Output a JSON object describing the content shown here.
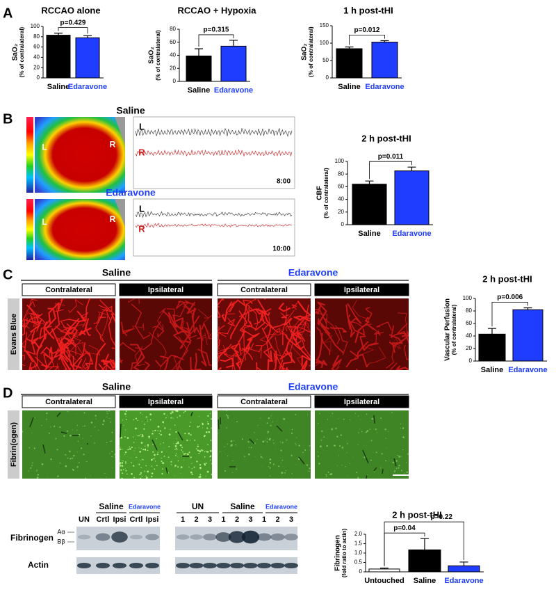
{
  "chart_data": [
    {
      "type": "bar",
      "title": "RCCAO alone",
      "ylabel": [
        "SaO₂",
        "(% of contralateral)"
      ],
      "categories": [
        "Saline",
        "Edaravone"
      ],
      "values": [
        83,
        78
      ],
      "errors": [
        4,
        4
      ],
      "colors": [
        "#000000",
        "#1f3dff"
      ],
      "ylim": [
        0,
        100
      ],
      "yticks": [
        0,
        20,
        40,
        60,
        80,
        100
      ],
      "comparisons": [
        "p=0.429"
      ]
    },
    {
      "type": "bar",
      "title": "RCCAO + Hypoxia",
      "ylabel": [
        "SaO₂",
        "(% of contralateral)"
      ],
      "categories": [
        "Saline",
        "Edaravone"
      ],
      "values": [
        39,
        54
      ],
      "errors": [
        11,
        9
      ],
      "colors": [
        "#000000",
        "#1f3dff"
      ],
      "ylim": [
        0,
        80
      ],
      "yticks": [
        0,
        20,
        40,
        60,
        80
      ],
      "comparisons": [
        "p=0.315"
      ]
    },
    {
      "type": "bar",
      "title": "1 h post-tHI",
      "ylabel": [
        "SaO₂",
        "(% of contralateral)"
      ],
      "categories": [
        "Saline",
        "Edaravone"
      ],
      "values": [
        84,
        103
      ],
      "errors": [
        5,
        4
      ],
      "colors": [
        "#000000",
        "#1f3dff"
      ],
      "ylim": [
        0,
        150
      ],
      "yticks": [
        0,
        50,
        100,
        150
      ],
      "comparisons": [
        "p=0.012"
      ]
    },
    {
      "type": "bar",
      "title": "2 h post-tHI",
      "ylabel": [
        "CBF",
        "(% of contralateral)"
      ],
      "categories": [
        "Saline",
        "Edaravone"
      ],
      "values": [
        64,
        85
      ],
      "errors": [
        5,
        6
      ],
      "colors": [
        "#000000",
        "#1f3dff"
      ],
      "ylim": [
        0,
        100
      ],
      "yticks": [
        0,
        20,
        40,
        60,
        80,
        100
      ],
      "comparisons": [
        "p=0.011"
      ]
    },
    {
      "type": "bar",
      "title": "2 h post-tHI",
      "ylabel": [
        "Vascular Perfusion",
        "(% of contralateral)"
      ],
      "categories": [
        "Saline",
        "Edaravone"
      ],
      "values": [
        43,
        82
      ],
      "errors": [
        9,
        3
      ],
      "colors": [
        "#000000",
        "#1f3dff"
      ],
      "ylim": [
        0,
        100
      ],
      "yticks": [
        0,
        20,
        40,
        60,
        80,
        100
      ],
      "comparisons": [
        "p=0.006"
      ]
    },
    {
      "type": "bar",
      "title": "2 h post-tHI",
      "ylabel": [
        "Fibrinogen",
        "(fold ratio to actin)"
      ],
      "categories": [
        "Untouched",
        "Saline",
        "Edaravone"
      ],
      "values": [
        0.15,
        1.17,
        0.32
      ],
      "errors": [
        0.05,
        0.6,
        0.2
      ],
      "colors": [
        "#ffffff",
        "#000000",
        "#1f3dff"
      ],
      "ylim": [
        0,
        2
      ],
      "yticks": [
        0,
        0.5,
        {
          "value": 1,
          "label": "1.0"
        },
        1.5,
        {
          "value": 2,
          "label": "2.0"
        }
      ],
      "comparisons": [
        "p=0.04",
        "p=0.22"
      ]
    }
  ],
  "panel_labels": [
    "A",
    "B",
    "C",
    "D"
  ],
  "panel_b": {
    "groups": [
      {
        "name": "Saline",
        "left": "L",
        "right": "R",
        "time": "8:00"
      },
      {
        "name": "Edaravone",
        "left": "L",
        "right": "R",
        "time": "10:00"
      }
    ]
  },
  "panel_c": {
    "groups": [
      "Saline",
      "Edaravone"
    ],
    "regions": [
      "Contralateral",
      "Ipsilateral"
    ],
    "stain": "Evans Blue"
  },
  "panel_d": {
    "groups": [
      "Saline",
      "Edaravone"
    ],
    "regions": [
      "Contralateral",
      "Ipsilateral"
    ],
    "stain": "Fibrin(ogen)"
  },
  "blots": {
    "rows": [
      "Fibrinogen",
      "Actin"
    ],
    "chains": [
      "Aα",
      "Bβ"
    ],
    "blot1": {
      "groups": [
        "Saline",
        "Edaravone"
      ],
      "lanes": [
        "UN",
        "Crtl",
        "Ipsi",
        "Crtl",
        "Ipsi"
      ]
    },
    "blot2": {
      "groups": [
        "UN",
        "Saline",
        "Edaravone"
      ],
      "lanes": [
        "1",
        "2",
        "3",
        "1",
        "2",
        "3",
        "1",
        "2",
        "3"
      ]
    }
  }
}
